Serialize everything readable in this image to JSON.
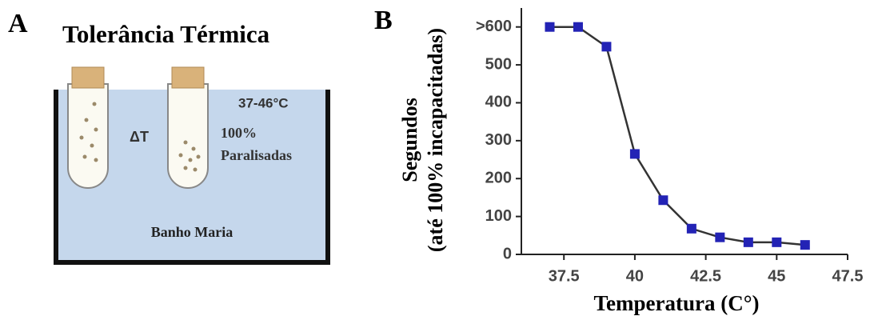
{
  "panel_a": {
    "label": "A",
    "title": "Tolerância Térmica",
    "range": "37-46°C",
    "delta": "ΔT",
    "percent": "100%",
    "state": "Paralisadas",
    "bath": "Banho Maria"
  },
  "chart_data": {
    "type": "line",
    "label": "B",
    "xlabel": "Temperatura (C°)",
    "ylabel": [
      "Segundos",
      "(até 100% incapacitadas)"
    ],
    "x": [
      37,
      38,
      39,
      40,
      41,
      42,
      43,
      44,
      45,
      46
    ],
    "series": [
      {
        "color": "#2323b5",
        "line_color": "#333333",
        "values": [
          600,
          600,
          548,
          265,
          143,
          68,
          45,
          32,
          32,
          25
        ]
      }
    ],
    "xlim": [
      36,
      47.5
    ],
    "xticks": [
      37.5,
      40,
      42.5,
      45,
      47.5
    ],
    "ylim": [
      0,
      650
    ],
    "yticks": [
      0,
      100,
      200,
      300,
      400,
      500,
      {
        "value": 600,
        "label": ">600"
      }
    ]
  }
}
